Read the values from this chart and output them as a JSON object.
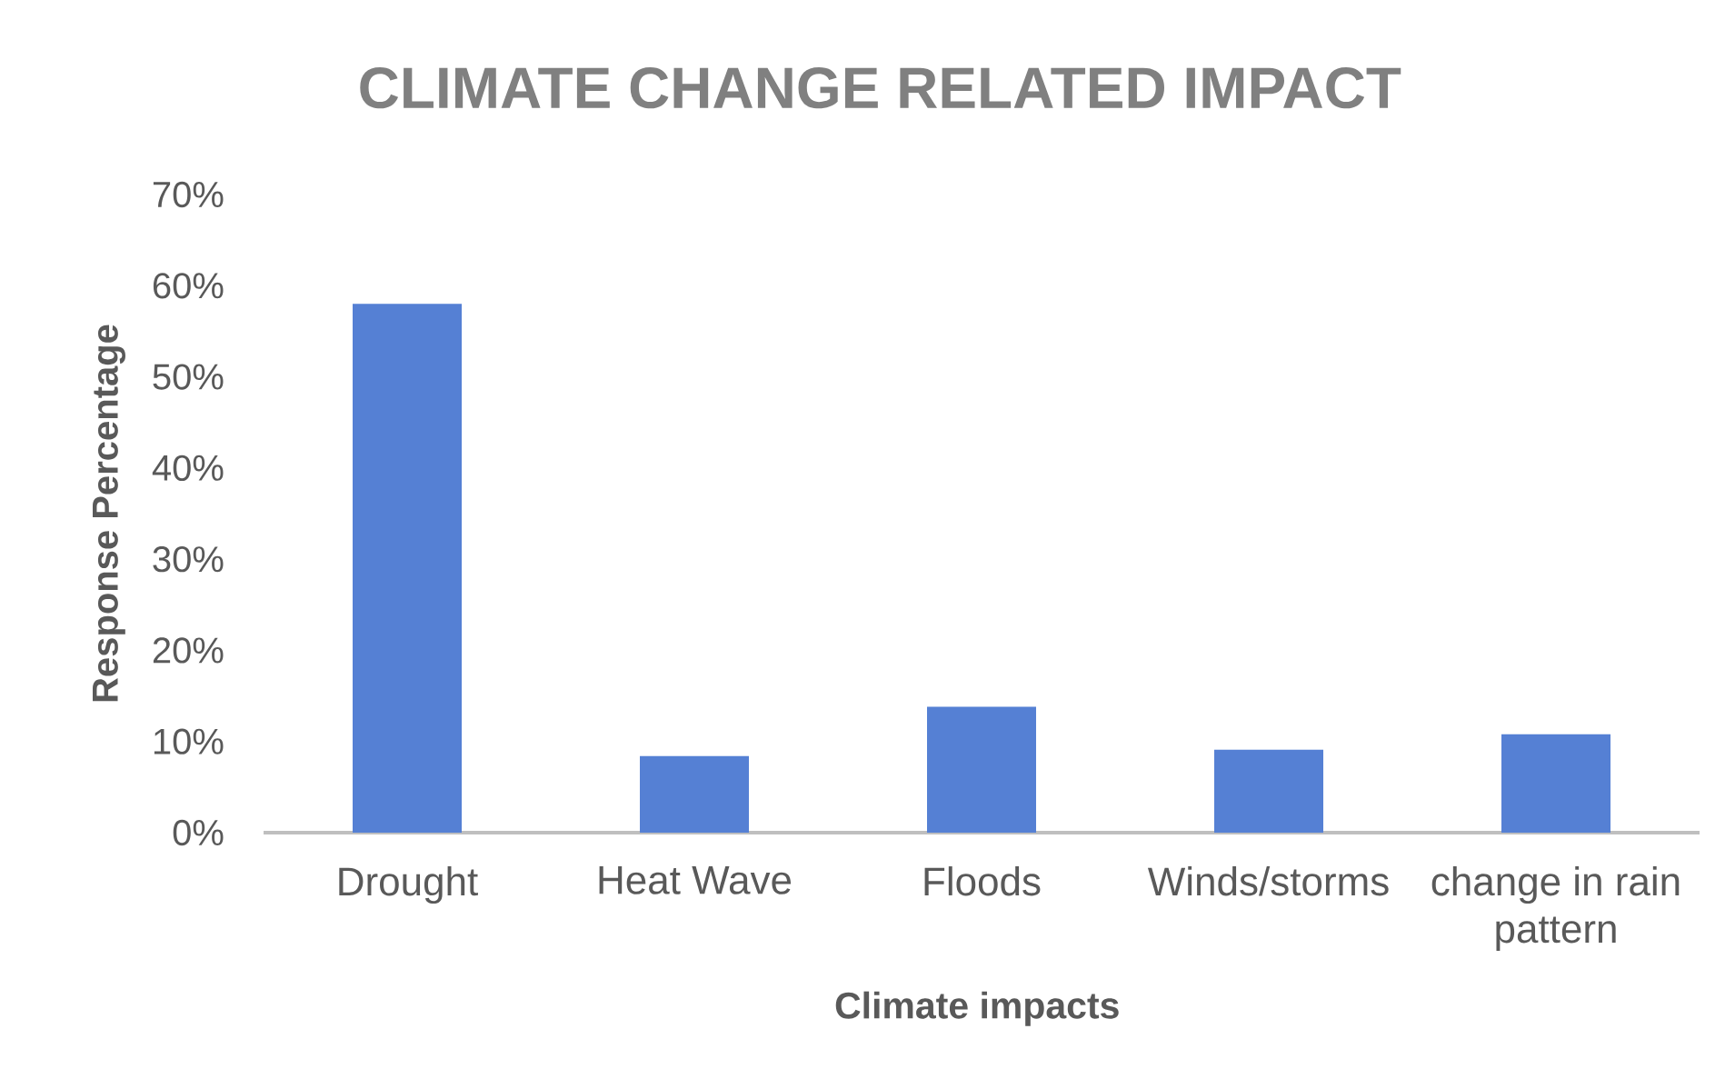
{
  "chart_data": {
    "type": "bar",
    "title": "CLIMATE CHANGE RELATED IMPACT",
    "categories": [
      "Drought",
      "Heat Wave",
      "Floods",
      "Winds/storms",
      "change in rain pattern"
    ],
    "values": [
      58,
      8.4,
      13.8,
      9.1,
      10.8
    ],
    "color": "#5580d4",
    "xlabel": "Climate impacts",
    "ylabel": "Response Percentage",
    "ylim": [
      0,
      70
    ],
    "yticks": [
      {
        "value": 0,
        "label": "0%"
      },
      {
        "value": 10,
        "label": "10%"
      },
      {
        "value": 20,
        "label": "20%"
      },
      {
        "value": 30,
        "label": "30%"
      },
      {
        "value": 40,
        "label": "40%"
      },
      {
        "value": 50,
        "label": "50%"
      },
      {
        "value": 60,
        "label": "60%"
      },
      {
        "value": 70,
        "label": "70%"
      }
    ]
  }
}
